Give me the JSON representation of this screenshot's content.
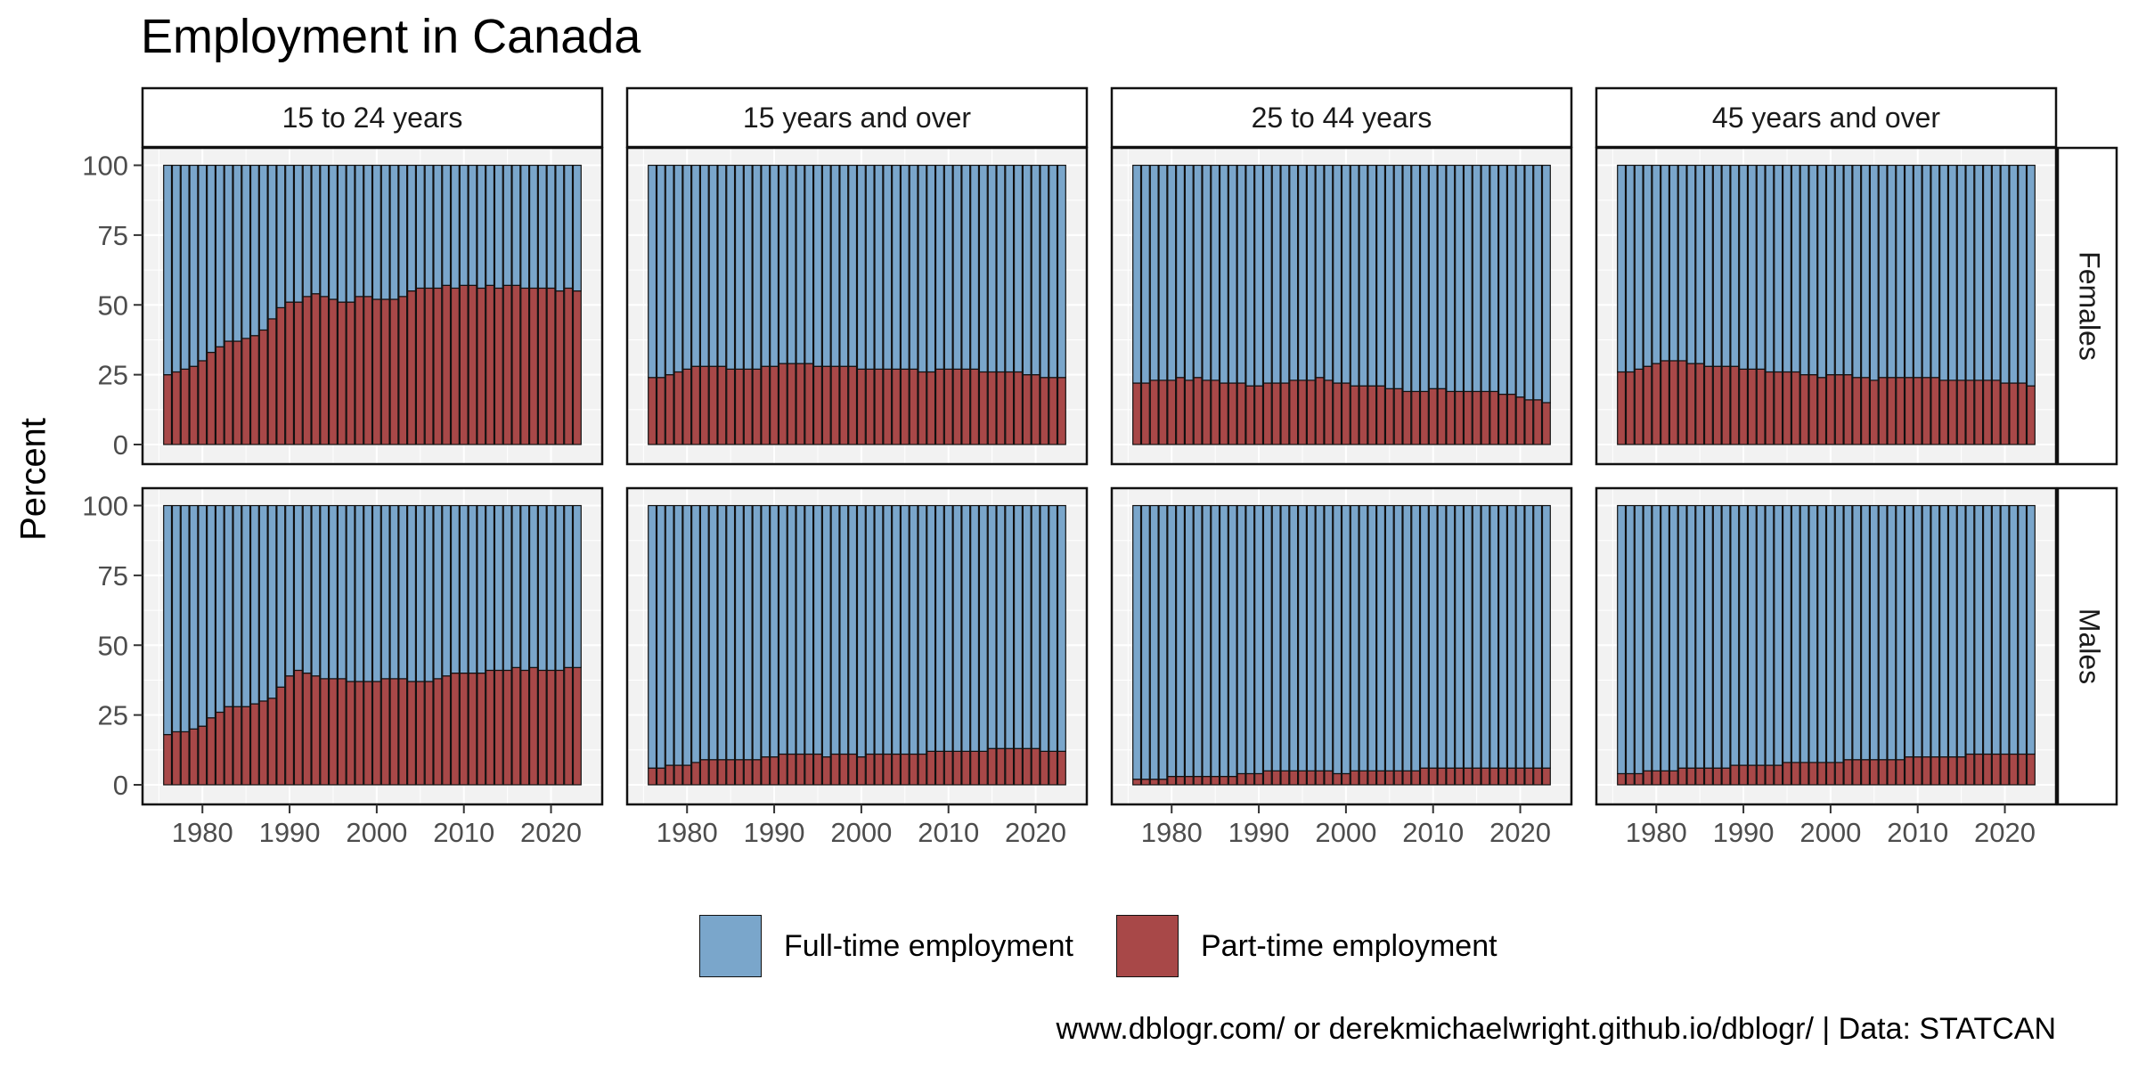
{
  "chart_data": {
    "type": "bar",
    "stacked": true,
    "title": "Employment in Canada",
    "xlabel": "",
    "ylabel": "Percent",
    "caption": "www.dblogr.com/ or derekmichaelwright.github.io/dblogr/ | Data: STATCAN",
    "x_ticks": [
      1980,
      1990,
      2000,
      2010,
      2020
    ],
    "y_ticks": [
      0,
      25,
      50,
      75,
      100
    ],
    "ylim": [
      0,
      100
    ],
    "years": [
      1976,
      1977,
      1978,
      1979,
      1980,
      1981,
      1982,
      1983,
      1984,
      1985,
      1986,
      1987,
      1988,
      1989,
      1990,
      1991,
      1992,
      1993,
      1994,
      1995,
      1996,
      1997,
      1998,
      1999,
      2000,
      2001,
      2002,
      2003,
      2004,
      2005,
      2006,
      2007,
      2008,
      2009,
      2010,
      2011,
      2012,
      2013,
      2014,
      2015,
      2016,
      2017,
      2018,
      2019,
      2020,
      2021,
      2022,
      2023
    ],
    "facet_columns": [
      "15 to 24 years",
      "15 years and over",
      "25 to 44 years",
      "45 years and over"
    ],
    "facet_rows": [
      "Females",
      "Males"
    ],
    "series_names": [
      "Full-time employment",
      "Part-time employment"
    ],
    "colors": {
      "full_time": "#7aa6cb",
      "part_time": "#a84848",
      "bar_edge": "#111111",
      "panel_bg": "#f2f2f2",
      "grid": "#ffffff"
    },
    "legend_position": "bottom",
    "grid": true,
    "note": "Each bar stacks part-time share (bottom) and full-time share (top) summing to 100.",
    "panels": [
      {
        "row": "Females",
        "column": "15 to 24 years",
        "part_time": [
          25,
          26,
          27,
          28,
          30,
          33,
          35,
          37,
          37,
          38,
          39,
          41,
          45,
          49,
          51,
          51,
          53,
          54,
          53,
          52,
          51,
          51,
          53,
          53,
          52,
          52,
          52,
          53,
          55,
          56,
          56,
          56,
          57,
          56,
          57,
          57,
          56,
          57,
          56,
          57,
          57,
          56,
          56,
          56,
          56,
          55,
          56,
          55
        ]
      },
      {
        "row": "Females",
        "column": "15 years and over",
        "part_time": [
          24,
          24,
          25,
          26,
          27,
          28,
          28,
          28,
          28,
          27,
          27,
          27,
          27,
          28,
          28,
          29,
          29,
          29,
          29,
          28,
          28,
          28,
          28,
          28,
          27,
          27,
          27,
          27,
          27,
          27,
          27,
          26,
          26,
          27,
          27,
          27,
          27,
          27,
          26,
          26,
          26,
          26,
          26,
          25,
          25,
          24,
          24,
          24
        ]
      },
      {
        "row": "Females",
        "column": "25 to 44 years",
        "part_time": [
          22,
          22,
          23,
          23,
          23,
          24,
          23,
          24,
          23,
          23,
          22,
          22,
          22,
          21,
          21,
          22,
          22,
          22,
          23,
          23,
          23,
          24,
          23,
          22,
          22,
          21,
          21,
          21,
          21,
          20,
          20,
          19,
          19,
          19,
          20,
          20,
          19,
          19,
          19,
          19,
          19,
          19,
          18,
          18,
          17,
          16,
          16,
          15
        ]
      },
      {
        "row": "Females",
        "column": "45 years and over",
        "part_time": [
          26,
          26,
          27,
          28,
          29,
          30,
          30,
          30,
          29,
          29,
          28,
          28,
          28,
          28,
          27,
          27,
          27,
          26,
          26,
          26,
          26,
          25,
          25,
          24,
          25,
          25,
          25,
          24,
          24,
          23,
          24,
          24,
          24,
          24,
          24,
          24,
          24,
          23,
          23,
          23,
          23,
          23,
          23,
          23,
          22,
          22,
          22,
          21
        ]
      },
      {
        "row": "Males",
        "column": "15 to 24 years",
        "part_time": [
          18,
          19,
          19,
          20,
          21,
          24,
          26,
          28,
          28,
          28,
          29,
          30,
          31,
          35,
          39,
          41,
          40,
          39,
          38,
          38,
          38,
          37,
          37,
          37,
          37,
          38,
          38,
          38,
          37,
          37,
          37,
          38,
          39,
          40,
          40,
          40,
          40,
          41,
          41,
          41,
          42,
          41,
          42,
          41,
          41,
          41,
          42,
          42
        ]
      },
      {
        "row": "Males",
        "column": "15 years and over",
        "part_time": [
          6,
          6,
          7,
          7,
          7,
          8,
          9,
          9,
          9,
          9,
          9,
          9,
          9,
          10,
          10,
          11,
          11,
          11,
          11,
          11,
          10,
          11,
          11,
          11,
          10,
          11,
          11,
          11,
          11,
          11,
          11,
          11,
          12,
          12,
          12,
          12,
          12,
          12,
          12,
          13,
          13,
          13,
          13,
          13,
          13,
          12,
          12,
          12
        ]
      },
      {
        "row": "Males",
        "column": "25 to 44 years",
        "part_time": [
          2,
          2,
          2,
          2,
          3,
          3,
          3,
          3,
          3,
          3,
          3,
          3,
          4,
          4,
          4,
          5,
          5,
          5,
          5,
          5,
          5,
          5,
          5,
          4,
          4,
          5,
          5,
          5,
          5,
          5,
          5,
          5,
          5,
          6,
          6,
          6,
          6,
          6,
          6,
          6,
          6,
          6,
          6,
          6,
          6,
          6,
          6,
          6
        ]
      },
      {
        "row": "Males",
        "column": "45 years and over",
        "part_time": [
          4,
          4,
          4,
          5,
          5,
          5,
          5,
          6,
          6,
          6,
          6,
          6,
          6,
          7,
          7,
          7,
          7,
          7,
          7,
          8,
          8,
          8,
          8,
          8,
          8,
          8,
          9,
          9,
          9,
          9,
          9,
          9,
          9,
          10,
          10,
          10,
          10,
          10,
          10,
          10,
          11,
          11,
          11,
          11,
          11,
          11,
          11,
          11
        ]
      }
    ]
  }
}
